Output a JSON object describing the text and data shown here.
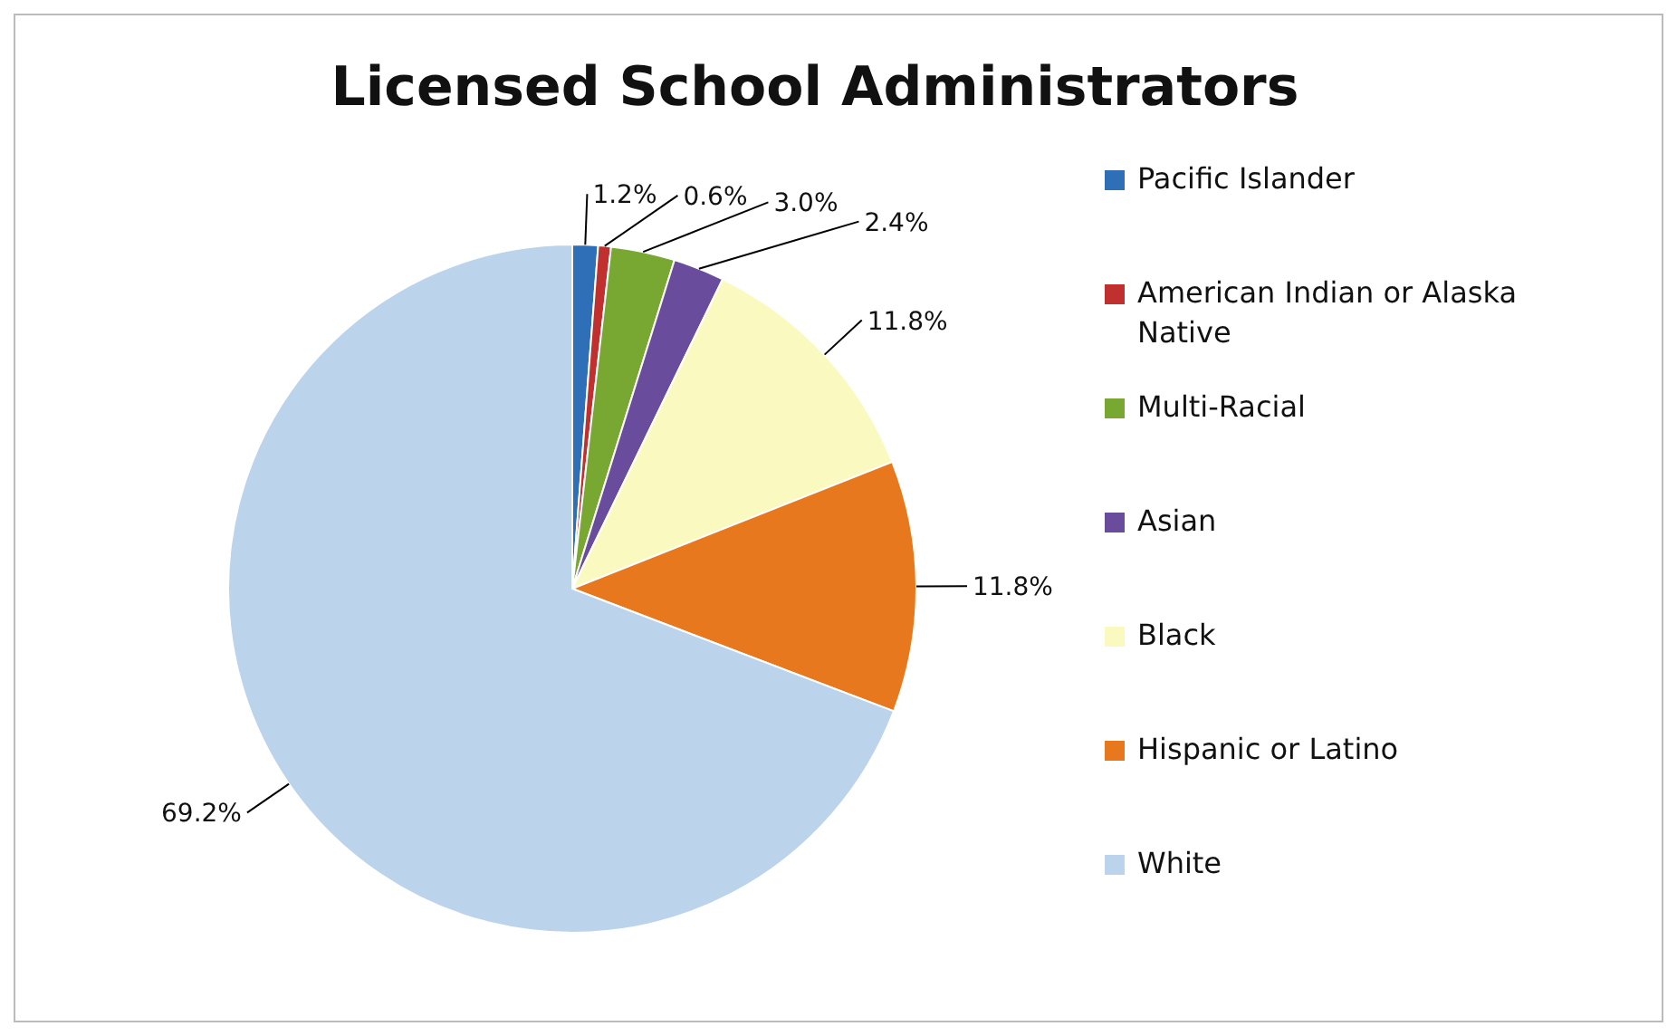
{
  "chart_data": {
    "type": "pie",
    "title": "Licensed School Administrators",
    "categories": [
      "Pacific Islander",
      "American Indian or Alaska Native",
      "Multi-Racial",
      "Asian",
      "Black",
      "Hispanic or Latino",
      "White"
    ],
    "values": [
      1.2,
      0.6,
      3.0,
      2.4,
      11.8,
      11.8,
      69.2
    ],
    "colors": [
      "#2e6fb7",
      "#c0302f",
      "#78a832",
      "#6a4c9c",
      "#fafac0",
      "#e8781e",
      "#bcd3ec"
    ],
    "value_labels": [
      "1.2%",
      "0.6%",
      "3.0%",
      "2.4%",
      "11.8%",
      "11.8%",
      "69.2%"
    ],
    "legend": "right"
  }
}
